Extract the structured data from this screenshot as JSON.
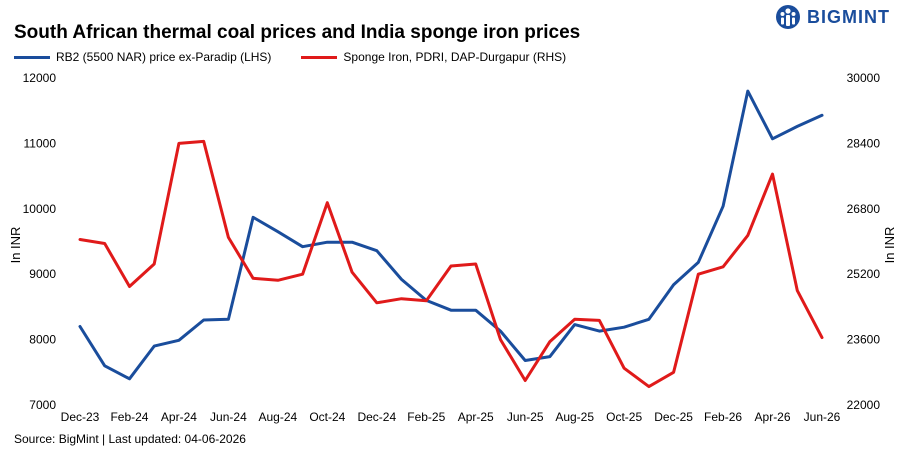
{
  "brand": {
    "name": "BIGMINT",
    "logo_icon": "bigmint-logo-icon",
    "color": "#1a4d9c"
  },
  "source": "Source: BigMint | Last updated: 04-06-2026",
  "chart_data": {
    "type": "line",
    "title": "South African thermal coal prices and India sponge iron prices",
    "ylabel_left": "In INR",
    "ylabel_right": "In INR",
    "legend_placement": "top-left",
    "grid": false,
    "x_tick_labels": [
      "Dec-23",
      "Feb-24",
      "Apr-24",
      "Jun-24",
      "Aug-24",
      "Oct-24",
      "Dec-24",
      "Feb-25",
      "Apr-25",
      "Jun-25",
      "Aug-25",
      "Oct-25",
      "Dec-25",
      "Feb-26",
      "Apr-26",
      "Jun-26"
    ],
    "x": [
      "Dec-23",
      "Jan-24",
      "Feb-24",
      "Mar-24",
      "Apr-24",
      "May-24",
      "Jun-24",
      "Jul-24",
      "Aug-24",
      "Sep-24",
      "Oct-24",
      "Nov-24",
      "Dec-24",
      "Jan-25",
      "Feb-25",
      "Mar-25",
      "Apr-25",
      "May-25",
      "Jun-25",
      "Jul-25",
      "Aug-25",
      "Sep-25",
      "Oct-25",
      "Nov-25",
      "Dec-25",
      "Jan-26",
      "Feb-26",
      "Mar-26",
      "Apr-26",
      "May-26",
      "Jun-26"
    ],
    "y_left": {
      "min": 7000,
      "max": 12000,
      "ticks": [
        "7000",
        "8000",
        "9000",
        "10000",
        "11000",
        "12000"
      ]
    },
    "y_right": {
      "min": 22000,
      "max": 30000,
      "ticks": [
        "22000",
        "23600",
        "25200",
        "26800",
        "28400",
        "30000"
      ]
    },
    "series": [
      {
        "name": "RB2 (5500 NAR) price ex-Paradip (LHS)",
        "axis": "left",
        "color": "#1a4d9c",
        "points": [
          [
            "Dec-23",
            8200
          ],
          [
            "Jan-24",
            7600
          ],
          [
            "Feb-24",
            7400
          ],
          [
            "Feb-24",
            7400
          ],
          [
            "Mar-24",
            7900
          ],
          [
            "Apr-24",
            7990
          ],
          [
            "Apr-24",
            7990
          ],
          [
            "May-24",
            8300
          ],
          [
            "Jun-24",
            8310
          ],
          [
            "Jun-24",
            8310
          ],
          [
            "Jul-24",
            9870
          ],
          [
            "Aug-24",
            9650
          ],
          [
            "Sep-24",
            9420
          ],
          [
            "Oct-24",
            9490
          ],
          [
            "Oct-24",
            9490
          ],
          [
            "Nov-24",
            9490
          ],
          [
            "Dec-24",
            9360
          ],
          [
            "Jan-25",
            8920
          ],
          [
            "Feb-25",
            8600
          ],
          [
            "Mar-25",
            8450
          ],
          [
            "Apr-25",
            8450
          ],
          [
            "May-25",
            8130
          ],
          [
            "Jun-25",
            7680
          ],
          [
            "Jul-25",
            7740
          ],
          [
            "Aug-25",
            8230
          ],
          [
            "Sep-25",
            8130
          ],
          [
            "Oct-25",
            8190
          ],
          [
            "Nov-25",
            8310
          ],
          [
            "Dec-25",
            8840
          ],
          [
            "Jan-26",
            9180
          ],
          [
            "Feb-26",
            10040
          ],
          [
            "Mar-26",
            11800
          ],
          [
            "Apr-26",
            11070
          ],
          [
            "May-26",
            11260
          ],
          [
            "Jun-26",
            11430
          ]
        ]
      },
      {
        "name": "Sponge Iron, PDRI, DAP-Durgapur (RHS)",
        "axis": "right",
        "color": "#e01a1a",
        "points": [
          [
            "Dec-23",
            26050
          ],
          [
            "Jan-24",
            25950
          ],
          [
            "Feb-24",
            24900
          ],
          [
            "Mar-24",
            25450
          ],
          [
            "Apr-24",
            28400
          ],
          [
            "May-24",
            28450
          ],
          [
            "Jun-24",
            26100
          ],
          [
            "Jul-24",
            25100
          ],
          [
            "Aug-24",
            25050
          ],
          [
            "Sep-24",
            25200
          ],
          [
            "Oct-24",
            26950
          ],
          [
            "Nov-24",
            25250
          ],
          [
            "Dec-24",
            24500
          ],
          [
            "Jan-25",
            24600
          ],
          [
            "Feb-25",
            24550
          ],
          [
            "Mar-25",
            25400
          ],
          [
            "Apr-25",
            25450
          ],
          [
            "May-25",
            23600
          ],
          [
            "Jun-25",
            22600
          ],
          [
            "Jul-25",
            23550
          ],
          [
            "Aug-25",
            24100
          ],
          [
            "Sep-25",
            24070
          ],
          [
            "Oct-25",
            22900
          ],
          [
            "Nov-25",
            22450
          ],
          [
            "Dec-25",
            22800
          ],
          [
            "Jan-26",
            25200
          ],
          [
            "Feb-26",
            25380
          ],
          [
            "Mar-26",
            26150
          ],
          [
            "Apr-26",
            27650
          ],
          [
            "May-26",
            24800
          ],
          [
            "Jun-26",
            23650
          ]
        ]
      }
    ]
  }
}
